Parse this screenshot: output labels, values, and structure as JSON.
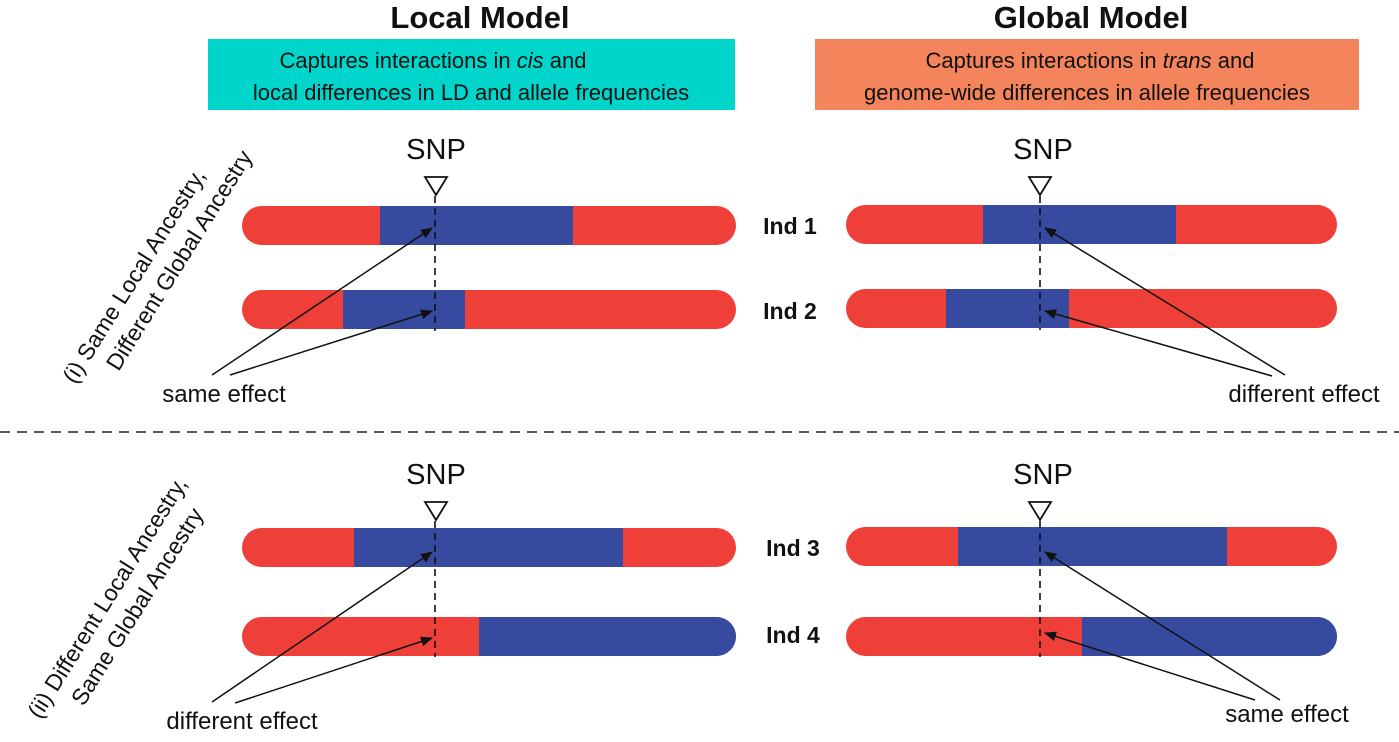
{
  "titles": {
    "local": "Local Model",
    "global": "Global Model"
  },
  "boxes": {
    "local": {
      "line1_pre": "Captures interactions in ",
      "line1_em": "cis",
      "line1_post": " and",
      "line2": "local differences in LD and allele frequencies",
      "color": "#00d5cc"
    },
    "global": {
      "line1_pre": "Captures interactions in ",
      "line1_em": "trans",
      "line1_post": " and",
      "line2": "genome-wide differences in allele frequencies",
      "color": "#f4845c"
    }
  },
  "snp_label": "SNP",
  "individuals": [
    "Ind 1",
    "Ind 2",
    "Ind 3",
    "Ind 4"
  ],
  "sections": {
    "i": {
      "line1": "(i) Same Local Ancestry,",
      "line2": "Different Global Ancestry"
    },
    "ii": {
      "line1": "(ii) Different Local Ancestry,",
      "line2": "Same Global Ancestry"
    }
  },
  "effects": {
    "top_local": "same effect",
    "top_global": "different effect",
    "bottom_local": "different effect",
    "bottom_global": "same effect"
  },
  "colors": {
    "ancestry_red": "#ee4039",
    "ancestry_blue": "#364ba0"
  }
}
